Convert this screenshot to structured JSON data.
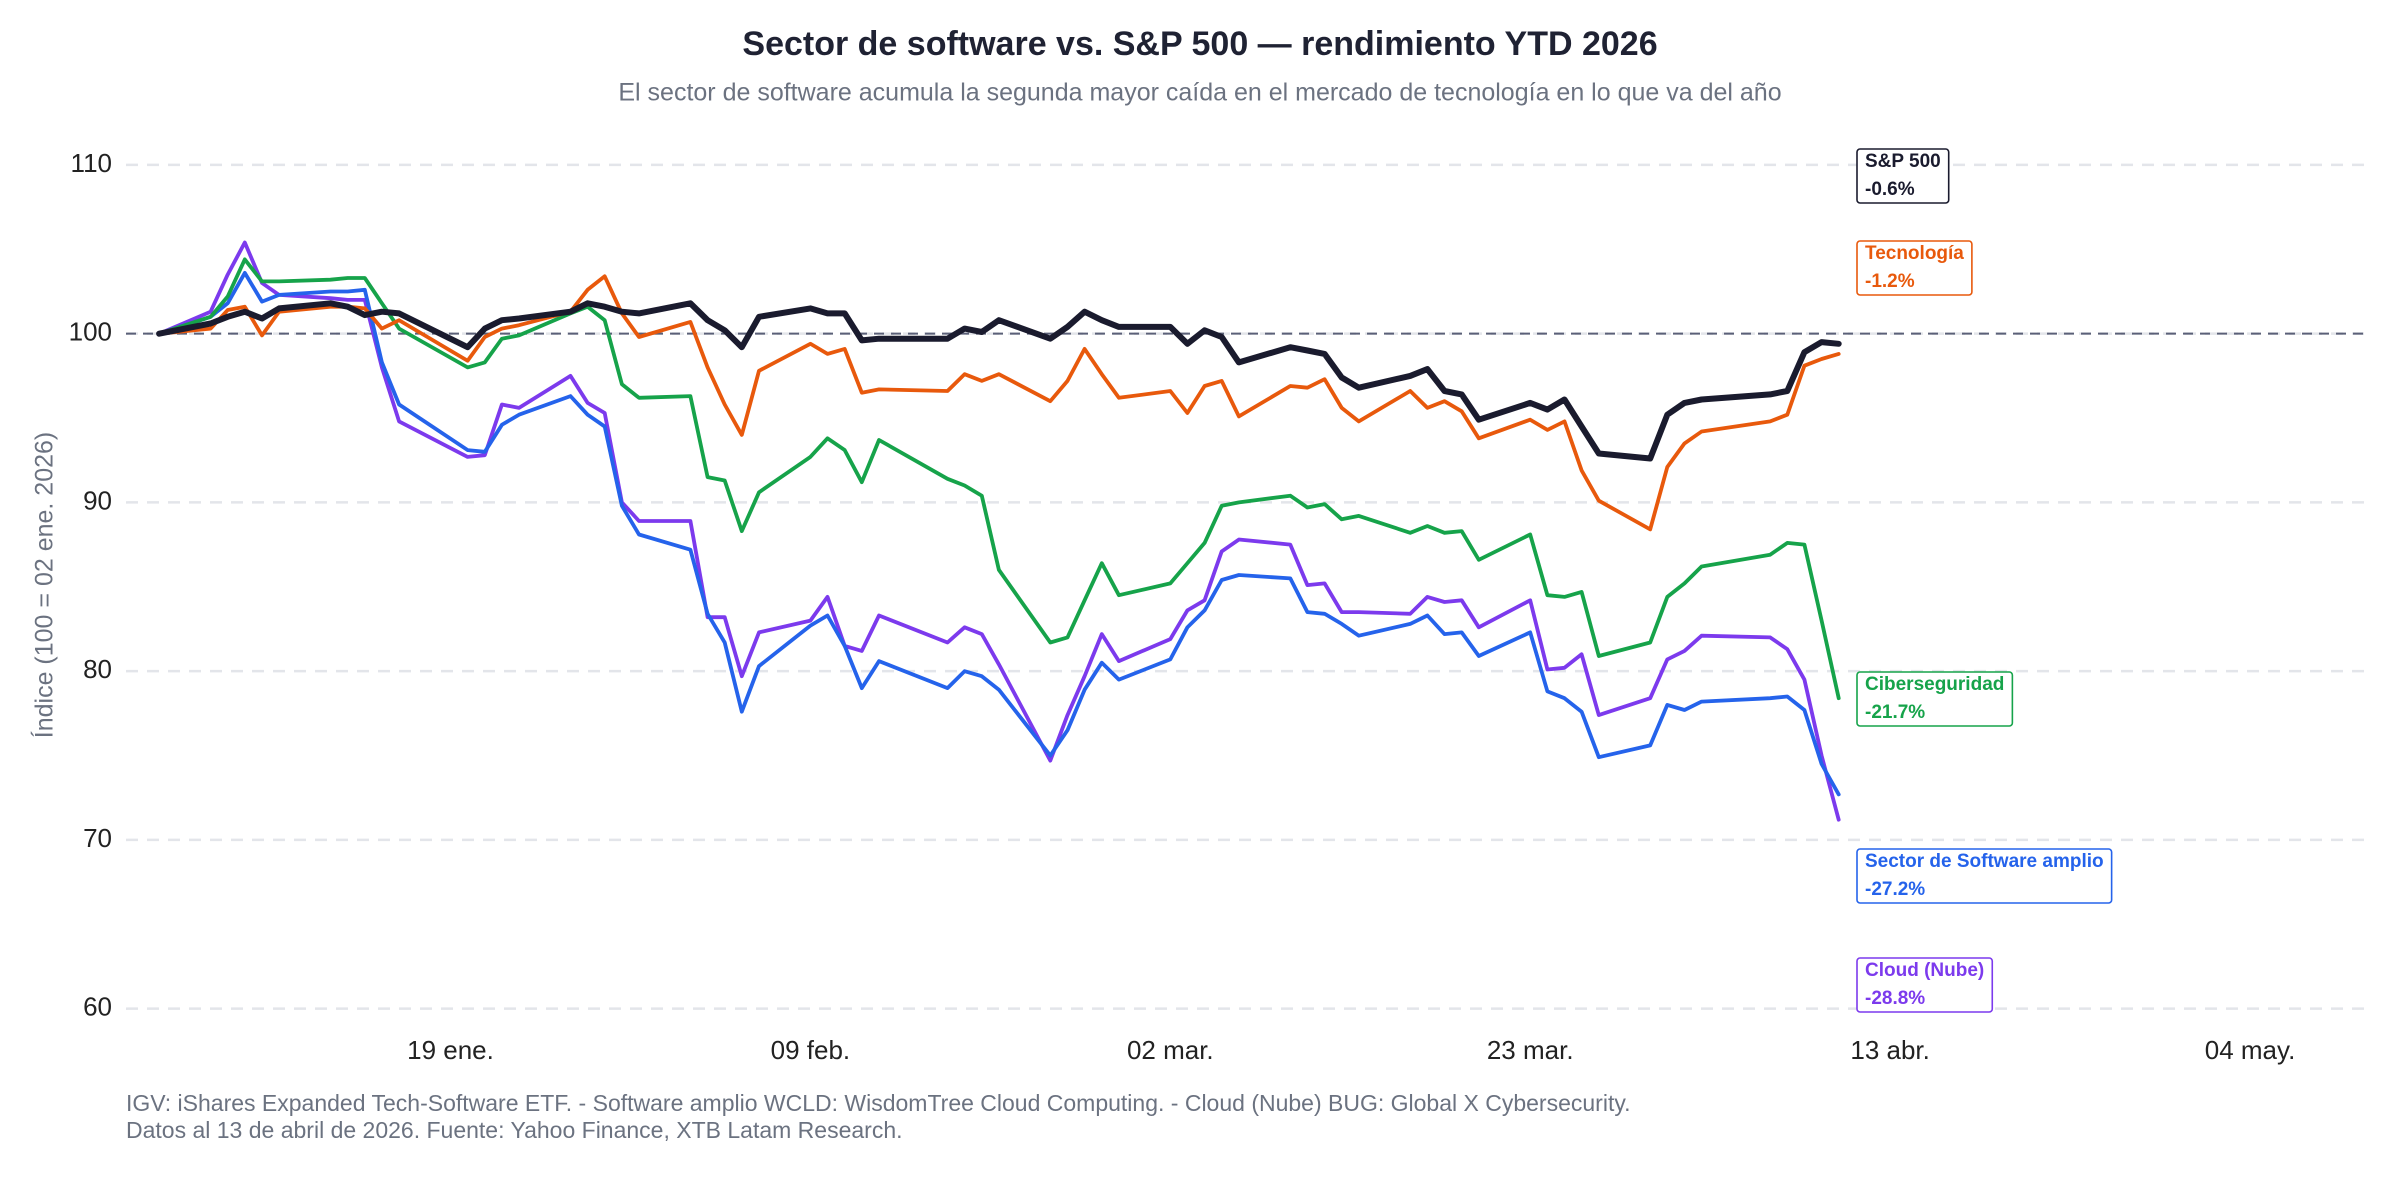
{
  "chart_data": {
    "type": "line",
    "title": "Sector de software vs. S&P 500 — rendimiento YTD 2026",
    "subtitle": "El sector de software acumula la segunda mayor caída en el mercado de tecnología en lo que va del año",
    "y_label": "Índice (100 = 02 ene. 2026)",
    "notes": [
      "IGV: iShares Expanded Tech-Software ETF. - Software amplio WCLD: WisdomTree Cloud Computing. - Cloud (Nube) BUG: Global X Cybersecurity.",
      "Datos al 13 de abril de 2026. Fuente: Yahoo Finance, XTB Latam Research."
    ],
    "x": [
      "02 ene.",
      "05 ene.",
      "06 ene.",
      "07 ene.",
      "08 ene.",
      "09 ene.",
      "12 ene.",
      "13 ene.",
      "14 ene.",
      "15 ene.",
      "16 ene.",
      "20 ene.",
      "21 ene.",
      "22 ene.",
      "23 ene.",
      "26 ene.",
      "27 ene.",
      "28 ene.",
      "29 ene.",
      "30 ene.",
      "02 feb.",
      "03 feb.",
      "04 feb.",
      "05 feb.",
      "06 feb.",
      "09 feb.",
      "10 feb.",
      "11 feb.",
      "12 feb.",
      "13 feb.",
      "17 feb.",
      "18 feb.",
      "19 feb.",
      "20 feb.",
      "23 feb.",
      "24 feb.",
      "25 feb.",
      "26 feb.",
      "27 feb.",
      "02 mar.",
      "03 mar.",
      "04 mar.",
      "05 mar.",
      "06 mar.",
      "09 mar.",
      "10 mar.",
      "11 mar.",
      "12 mar.",
      "13 mar.",
      "16 mar.",
      "17 mar.",
      "18 mar.",
      "19 mar.",
      "20 mar.",
      "23 mar.",
      "24 mar.",
      "25 mar.",
      "26 mar.",
      "27 mar.",
      "30 mar.",
      "31 mar.",
      "01 abr.",
      "02 abr.",
      "06 abr.",
      "07 abr.",
      "08 abr.",
      "09 abr.",
      "10 abr."
    ],
    "xlim": [
      "01 ene.",
      "11 may."
    ],
    "xticks": [
      "19 ene.",
      "09 feb.",
      "02 mar.",
      "23 mar.",
      "13 abr.",
      "04 may."
    ],
    "ylim": [
      58.5,
      111.5
    ],
    "yticks": [
      60,
      70,
      80,
      90,
      100,
      110
    ],
    "grid": true,
    "reference_y": 100,
    "series": [
      {
        "name": "S&P 500",
        "color": "#1a1b2e",
        "ytd_label": "-0.6%",
        "values": [
          100,
          100.6,
          101,
          101.3,
          100.9,
          101.5,
          101.8,
          101.6,
          101.1,
          101.3,
          101.2,
          99.2,
          100.3,
          100.8,
          100.9,
          101.3,
          101.8,
          101.6,
          101.3,
          101.2,
          101.8,
          100.8,
          100.2,
          99.2,
          101,
          101.5,
          101.2,
          101.2,
          99.6,
          99.7,
          99.7,
          100.3,
          100.1,
          100.8,
          99.7,
          100.4,
          101.3,
          100.8,
          100.4,
          100.4,
          99.4,
          100.2,
          99.8,
          98.3,
          99.2,
          99,
          98.8,
          97.4,
          96.8,
          97.5,
          97.9,
          96.6,
          96.4,
          94.9,
          95.9,
          95.5,
          96.1,
          94.5,
          92.9,
          92.6,
          95.2,
          95.9,
          96.1,
          96.4,
          96.6,
          98.9,
          99.5,
          99.4
        ]
      },
      {
        "name": "Tecnología",
        "color": "#e8590c",
        "ytd_label": "-1.2%",
        "values": [
          100,
          100.3,
          101.4,
          101.6,
          99.9,
          101.3,
          101.6,
          101.6,
          101.5,
          100.3,
          100.8,
          98.4,
          99.8,
          100.3,
          100.5,
          101.3,
          102.6,
          103.4,
          101.2,
          99.8,
          100.7,
          98,
          95.8,
          94,
          97.8,
          99.4,
          98.8,
          99.1,
          96.5,
          96.7,
          96.6,
          97.6,
          97.2,
          97.6,
          96,
          97.2,
          99.1,
          97.6,
          96.2,
          96.6,
          95.3,
          96.9,
          97.2,
          95.1,
          96.9,
          96.8,
          97.3,
          95.6,
          94.8,
          96.6,
          95.6,
          96,
          95.4,
          93.8,
          94.9,
          94.3,
          94.8,
          91.9,
          90.1,
          88.4,
          92.1,
          93.5,
          94.2,
          94.8,
          95.2,
          98.1,
          98.5,
          98.8
        ]
      },
      {
        "name": "Ciberseguridad",
        "color": "#16a34a",
        "ytd_label": "-21.7%",
        "values": [
          100,
          101,
          102.2,
          104.4,
          103.1,
          103.1,
          103.2,
          103.3,
          103.3,
          101.8,
          100.3,
          98,
          98.3,
          99.7,
          99.9,
          101.2,
          101.6,
          100.8,
          97,
          96.2,
          96.3,
          91.5,
          91.3,
          88.3,
          90.6,
          92.7,
          93.8,
          93.1,
          91.2,
          93.7,
          91.4,
          91,
          90.4,
          86,
          81.7,
          82,
          84.2,
          86.4,
          84.5,
          85.2,
          86.4,
          87.6,
          89.8,
          90,
          90.4,
          89.7,
          89.9,
          89,
          89.2,
          88.2,
          88.6,
          88.2,
          88.3,
          86.6,
          88.1,
          84.5,
          84.4,
          84.7,
          80.9,
          81.7,
          84.4,
          85.2,
          86.2,
          86.9,
          87.6,
          87.5,
          83,
          78.4
        ]
      },
      {
        "name": "Sector de Software amplio",
        "color": "#2563eb",
        "ytd_label": "-27.2%",
        "values": [
          100,
          101,
          101.8,
          103.6,
          101.9,
          102.3,
          102.5,
          102.5,
          102.6,
          98.3,
          95.8,
          93.1,
          93,
          94.6,
          95.2,
          96.3,
          95.2,
          94.5,
          89.8,
          88.1,
          87.2,
          83.4,
          81.7,
          77.6,
          80.3,
          82.7,
          83.3,
          81.5,
          79,
          80.6,
          79,
          80,
          79.7,
          78.9,
          75,
          76.5,
          78.9,
          80.5,
          79.5,
          80.7,
          82.6,
          83.6,
          85.4,
          85.7,
          85.5,
          83.5,
          83.4,
          82.8,
          82.1,
          82.8,
          83.3,
          82.2,
          82.3,
          80.9,
          82.3,
          78.8,
          78.4,
          77.6,
          74.9,
          75.6,
          78,
          77.7,
          78.2,
          78.4,
          78.5,
          77.7,
          74.5,
          72.7
        ]
      },
      {
        "name": "Cloud (Nube)",
        "color": "#7c3aed",
        "ytd_label": "-28.8%",
        "values": [
          100,
          101.3,
          103.5,
          105.4,
          103,
          102.3,
          102.1,
          102,
          102,
          98,
          94.8,
          92.7,
          92.8,
          95.8,
          95.6,
          97.5,
          95.9,
          95.3,
          90,
          88.9,
          88.9,
          83.2,
          83.2,
          79.7,
          82.3,
          83,
          84.4,
          81.5,
          81.2,
          83.3,
          81.7,
          82.6,
          82.2,
          80.4,
          74.7,
          77.4,
          79.7,
          82.2,
          80.6,
          81.9,
          83.6,
          84.2,
          87.1,
          87.8,
          87.5,
          85.1,
          85.2,
          83.5,
          83.5,
          83.4,
          84.4,
          84.1,
          84.2,
          82.6,
          84.2,
          80.1,
          80.2,
          81,
          77.4,
          78.4,
          80.7,
          81.2,
          82.1,
          82,
          81.3,
          79.5,
          75,
          71.2
        ]
      }
    ]
  }
}
